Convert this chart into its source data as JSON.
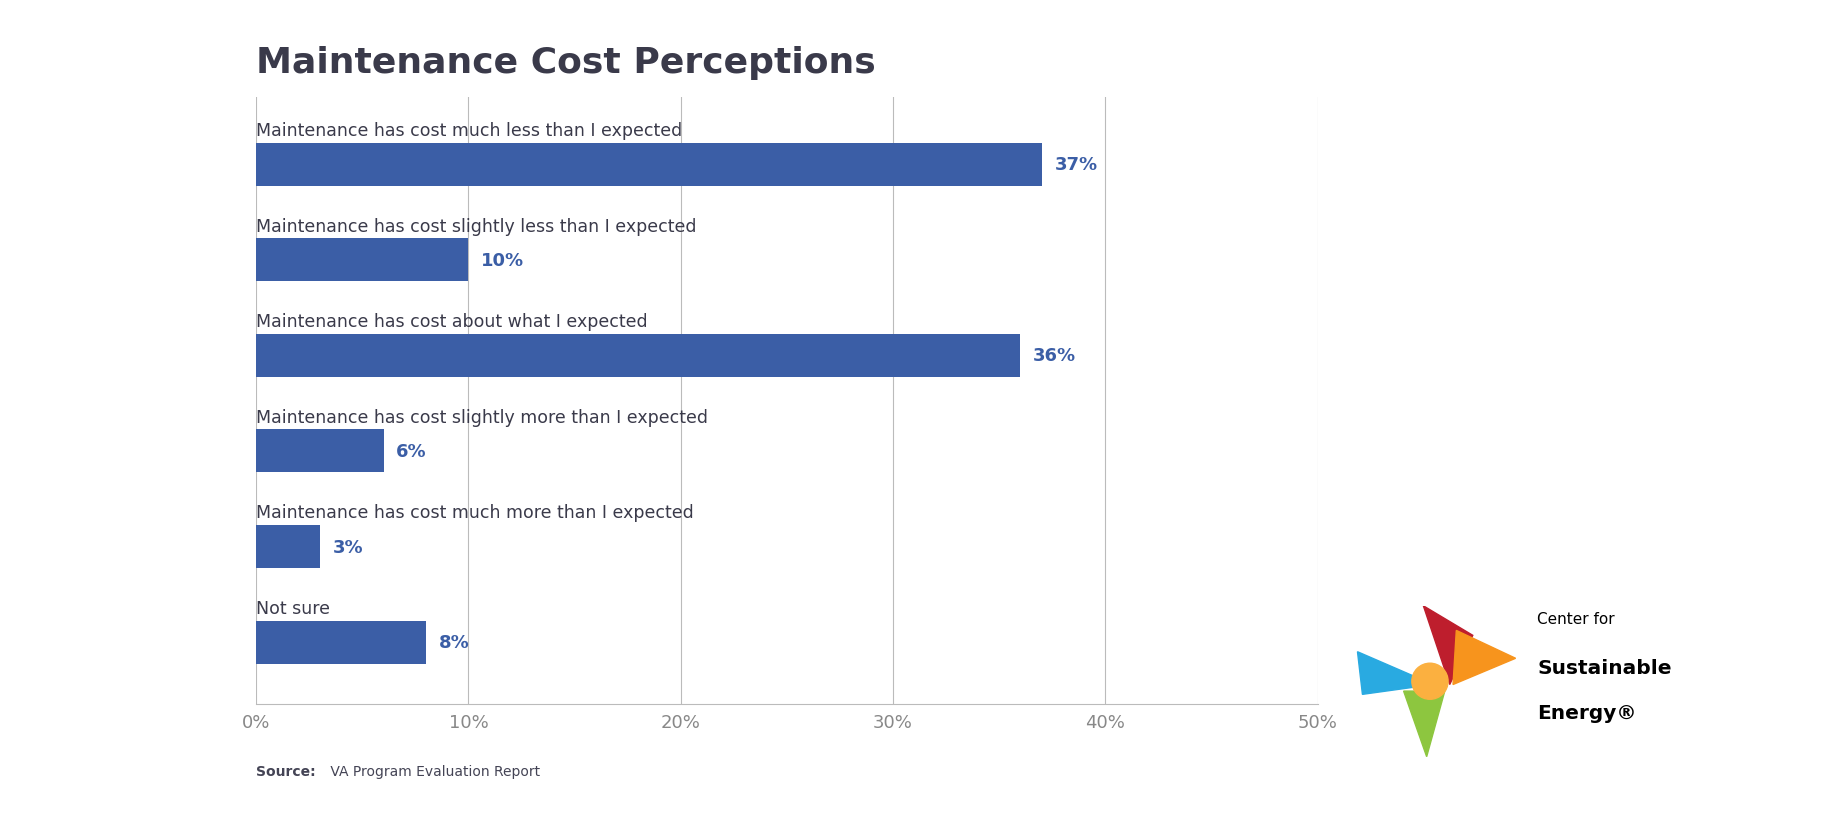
{
  "title": "Maintenance Cost Perceptions",
  "categories": [
    "Maintenance has cost much less than I expected",
    "Maintenance has cost slightly less than I expected",
    "Maintenance has cost about what I expected",
    "Maintenance has cost slightly more than I expected",
    "Maintenance has cost much more than I expected",
    "Not sure"
  ],
  "values": [
    37,
    10,
    36,
    6,
    3,
    8
  ],
  "labels": [
    "37%",
    "10%",
    "36%",
    "6%",
    "3%",
    "8%"
  ],
  "bar_color": "#3B5EA6",
  "label_color": "#3B5EA6",
  "title_color": "#3A3A4A",
  "category_color": "#3A3A4A",
  "tick_color": "#888888",
  "grid_color": "#BBBBBB",
  "background_color": "#FFFFFF",
  "xlim": [
    0,
    50
  ],
  "xticks": [
    0,
    10,
    20,
    30,
    40,
    50
  ],
  "xtick_labels": [
    "0%",
    "10%",
    "20%",
    "30%",
    "40%",
    "50%"
  ],
  "title_fontsize": 26,
  "category_fontsize": 12.5,
  "label_fontsize": 13,
  "tick_fontsize": 13,
  "source_bold": "Source:",
  "source_normal": " VA Program Evaluation Report",
  "source_fontsize": 10,
  "logo_text_line1": "Center for",
  "logo_text_line2": "Sustainable",
  "logo_text_line3": "Energy®"
}
